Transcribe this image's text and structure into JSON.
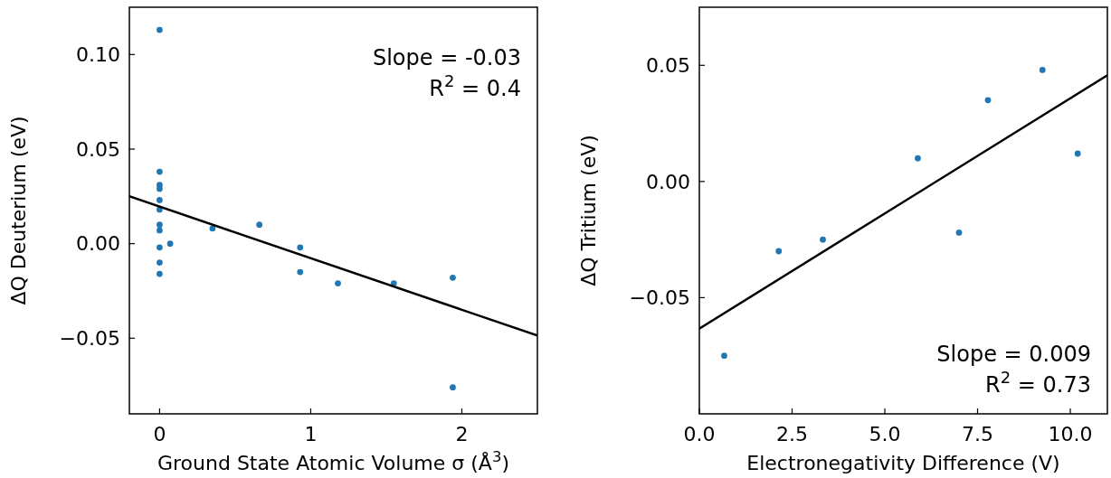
{
  "chart_data": [
    {
      "type": "scatter",
      "xlabel": "Ground State Atomic Volume σ (Å$^{3}$)",
      "ylabel": "ΔQ Deuterium (eV)",
      "xlim": [
        -0.2,
        2.5
      ],
      "ylim": [
        -0.09,
        0.125
      ],
      "xticks": [
        0,
        1,
        2
      ],
      "yticks": [
        {
          "value": -0.05,
          "label": "−0.05"
        },
        {
          "value": 0,
          "label": "0.00"
        },
        {
          "value": 0.05,
          "label": "0.05"
        },
        {
          "value": 0.1,
          "label": "0.10"
        }
      ],
      "grid": false,
      "annotations": [
        "Slope = -0.03",
        "R$^{2}$ = 0.4"
      ],
      "series": [
        {
          "marker": "circle",
          "color": "#1f77b4",
          "x": [
            0,
            0,
            0,
            0,
            0,
            0,
            0,
            0,
            0,
            0,
            0,
            0.07,
            0.35,
            0.66,
            0.93,
            0.93,
            1.18,
            1.55,
            1.94,
            1.94
          ],
          "values": [
            0.113,
            0.038,
            0.031,
            0.029,
            0.023,
            0.018,
            0.01,
            0.007,
            -0.002,
            -0.01,
            -0.016,
            0.0,
            0.008,
            0.01,
            -0.002,
            -0.015,
            -0.021,
            -0.021,
            -0.018,
            -0.076
          ]
        },
        {
          "type": "line",
          "marker": "none",
          "color": "#000000",
          "x": [
            -0.2,
            2.5
          ],
          "values": [
            0.025,
            -0.0486
          ]
        }
      ]
    },
    {
      "type": "scatter",
      "xlabel": "Electronegativity Difference (V)",
      "ylabel": "ΔQ Tritium (eV)",
      "xlim": [
        0,
        11
      ],
      "ylim": [
        -0.1,
        0.075
      ],
      "xticks": [
        {
          "value": 0,
          "label": "0.0"
        },
        {
          "value": 2.5,
          "label": "2.5"
        },
        {
          "value": 5,
          "label": "5.0"
        },
        {
          "value": 7.5,
          "label": "7.5"
        },
        {
          "value": 10,
          "label": "10.0"
        }
      ],
      "yticks": [
        {
          "value": -0.05,
          "label": "−0.05"
        },
        {
          "value": 0,
          "label": "0.00"
        },
        {
          "value": 0.05,
          "label": "0.05"
        }
      ],
      "grid": false,
      "annotations": [
        "Slope = 0.009",
        "R$^{2}$ = 0.73"
      ],
      "series": [
        {
          "marker": "circle",
          "color": "#1f77b4",
          "x": [
            0.67,
            2.14,
            3.33,
            5.89,
            7.0,
            7.78,
            9.25,
            10.2
          ],
          "values": [
            -0.075,
            -0.03,
            -0.025,
            0.01,
            -0.022,
            0.035,
            0.048,
            0.012
          ]
        },
        {
          "type": "line",
          "marker": "none",
          "color": "#000000",
          "x": [
            0,
            11
          ],
          "values": [
            -0.0633,
            0.0457
          ]
        }
      ]
    }
  ]
}
